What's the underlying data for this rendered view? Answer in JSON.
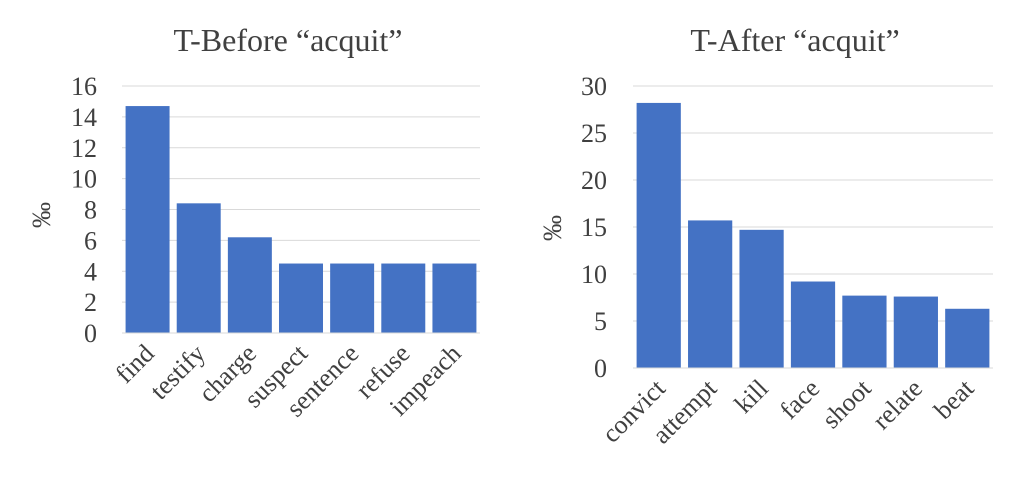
{
  "chart_data": [
    {
      "type": "bar",
      "title": "T-Before “acquit”",
      "ylabel": "‰",
      "xlabel": "",
      "categories": [
        "find",
        "testify",
        "charge",
        "suspect",
        "sentence",
        "refuse",
        "impeach"
      ],
      "values": [
        14.7,
        8.4,
        6.2,
        4.5,
        4.5,
        4.5,
        4.5
      ],
      "ylim": [
        0,
        16
      ],
      "yticks": [
        0,
        2,
        4,
        6,
        8,
        10,
        12,
        14,
        16
      ],
      "grid": true,
      "color": "#4472C4"
    },
    {
      "type": "bar",
      "title": "T-After “acquit”",
      "ylabel": "‰",
      "xlabel": "",
      "categories": [
        "convict",
        "attempt",
        "kill",
        "face",
        "shoot",
        "relate",
        "beat"
      ],
      "values": [
        28.2,
        15.7,
        14.7,
        9.2,
        7.7,
        7.6,
        6.3
      ],
      "ylim": [
        0,
        30
      ],
      "yticks": [
        0,
        5,
        10,
        15,
        20,
        25,
        30
      ],
      "grid": true,
      "color": "#4472C4"
    }
  ]
}
